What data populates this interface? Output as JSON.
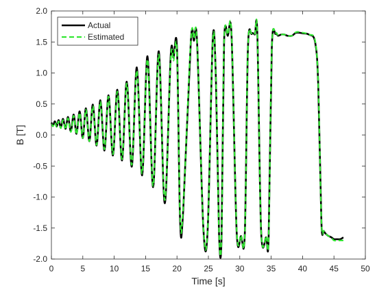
{
  "chart_data": {
    "type": "line",
    "xlabel": "Time [s]",
    "ylabel": "B [T]",
    "xlim": [
      0,
      50
    ],
    "ylim": [
      -2.0,
      2.0
    ],
    "xticks": [
      0,
      5,
      10,
      15,
      20,
      25,
      30,
      35,
      40,
      45,
      50
    ],
    "yticks": [
      2.0,
      1.5,
      1.0,
      0.5,
      0.0,
      -0.5,
      -1.0,
      -1.5,
      -2.0
    ],
    "xtick_labels": [
      "0",
      "5",
      "10",
      "15",
      "20",
      "25",
      "30",
      "35",
      "40",
      "45",
      "50"
    ],
    "ytick_labels": [
      "2.0",
      "1.5",
      "1.0",
      "0.5",
      "0.0",
      "-0.5",
      "-1.0",
      "-1.5",
      "-2.0"
    ],
    "grid": false,
    "legend_position": "top-left",
    "series": [
      {
        "name": "Actual",
        "color": "#000000",
        "style": "solid",
        "x": [
          0,
          0.25,
          0.55,
          0.85,
          1.15,
          1.5,
          1.85,
          2.25,
          2.65,
          3.1,
          3.55,
          4.0,
          4.5,
          5.0,
          5.5,
          6.05,
          6.6,
          7.2,
          7.8,
          8.45,
          9.1,
          9.8,
          10.5,
          11.25,
          12.0,
          12.8,
          13.6,
          14.45,
          15.3,
          16.2,
          17.1,
          18.05,
          19.0,
          19.45,
          20.0,
          20.5,
          21.0,
          22.2,
          22.7,
          23.2,
          24.2,
          24.9,
          25.7,
          26.2,
          26.7,
          27.1,
          27.5,
          28.1,
          28.7,
          29.5,
          30.2,
          30.8,
          31.3,
          31.9,
          32.4,
          32.8,
          33.4,
          34.2,
          34.6,
          35.1,
          35.7,
          36.1,
          36.6,
          37.1,
          37.6,
          38.3,
          39.0,
          40.0,
          41.0,
          42.0,
          42.5,
          43.0,
          43.4,
          44.0,
          44.6,
          45.0,
          45.5,
          46.0,
          46.5
        ],
        "y": [
          0.2,
          0.15,
          0.22,
          0.14,
          0.24,
          0.12,
          0.26,
          0.1,
          0.29,
          0.06,
          0.33,
          0.02,
          0.38,
          -0.05,
          0.43,
          -0.1,
          0.49,
          -0.17,
          0.56,
          -0.25,
          0.64,
          -0.33,
          0.73,
          -0.41,
          0.86,
          -0.51,
          1.09,
          -0.65,
          1.27,
          -0.84,
          1.35,
          -1.1,
          1.28,
          1.25,
          1.4,
          -1.4,
          -1.2,
          1.5,
          1.52,
          1.5,
          -1.5,
          -1.5,
          1.55,
          0.9,
          -1.6,
          -1.65,
          1.5,
          1.6,
          1.58,
          -1.55,
          -1.63,
          -1.6,
          1.4,
          1.63,
          1.62,
          1.62,
          -1.55,
          -1.65,
          -1.65,
          1.4,
          1.63,
          1.6,
          1.62,
          1.62,
          1.6,
          1.6,
          1.65,
          1.64,
          1.62,
          1.5,
          0.8,
          -1.4,
          -1.55,
          -1.62,
          -1.65,
          -1.68,
          -1.68,
          -1.68,
          -1.65
        ]
      },
      {
        "name": "Estimated",
        "color": "#33e633",
        "style": "dashed",
        "x": [
          0,
          0.25,
          0.55,
          0.85,
          1.15,
          1.5,
          1.85,
          2.25,
          2.65,
          3.1,
          3.55,
          4.0,
          4.5,
          5.0,
          5.5,
          6.05,
          6.6,
          7.2,
          7.8,
          8.45,
          9.1,
          9.8,
          10.5,
          11.25,
          12.0,
          12.8,
          13.6,
          14.45,
          15.3,
          16.2,
          17.1,
          18.05,
          19.0,
          19.45,
          20.0,
          20.5,
          21.0,
          22.2,
          22.7,
          23.2,
          24.2,
          24.9,
          25.7,
          26.2,
          26.7,
          27.1,
          27.5,
          28.1,
          28.7,
          29.5,
          30.2,
          30.8,
          31.3,
          31.9,
          32.4,
          32.8,
          33.4,
          34.2,
          34.6,
          35.1,
          35.7,
          36.1,
          36.6,
          37.1,
          37.6,
          38.3,
          39.0,
          40.0,
          41.0,
          42.0,
          42.5,
          43.0,
          43.4,
          44.0,
          44.6,
          45.0,
          45.5,
          46.0,
          46.5
        ],
        "y": [
          0.18,
          0.14,
          0.2,
          0.13,
          0.22,
          0.11,
          0.24,
          0.09,
          0.27,
          0.05,
          0.31,
          0.01,
          0.36,
          -0.05,
          0.41,
          -0.1,
          0.47,
          -0.16,
          0.54,
          -0.23,
          0.62,
          -0.31,
          0.7,
          -0.39,
          0.83,
          -0.48,
          1.04,
          -0.62,
          1.22,
          -0.82,
          1.3,
          -1.05,
          1.23,
          1.2,
          1.35,
          -1.33,
          -1.15,
          1.52,
          1.55,
          1.5,
          -1.48,
          -1.48,
          1.52,
          0.9,
          -1.58,
          -1.62,
          1.5,
          1.62,
          1.6,
          -1.52,
          -1.62,
          -1.6,
          1.4,
          1.64,
          1.63,
          1.63,
          -1.55,
          -1.63,
          -1.64,
          1.4,
          1.64,
          1.61,
          1.62,
          1.62,
          1.6,
          1.6,
          1.66,
          1.65,
          1.62,
          1.52,
          0.8,
          -1.38,
          -1.55,
          -1.62,
          -1.66,
          -1.7,
          -1.7,
          -1.7,
          -1.7
        ]
      }
    ]
  }
}
